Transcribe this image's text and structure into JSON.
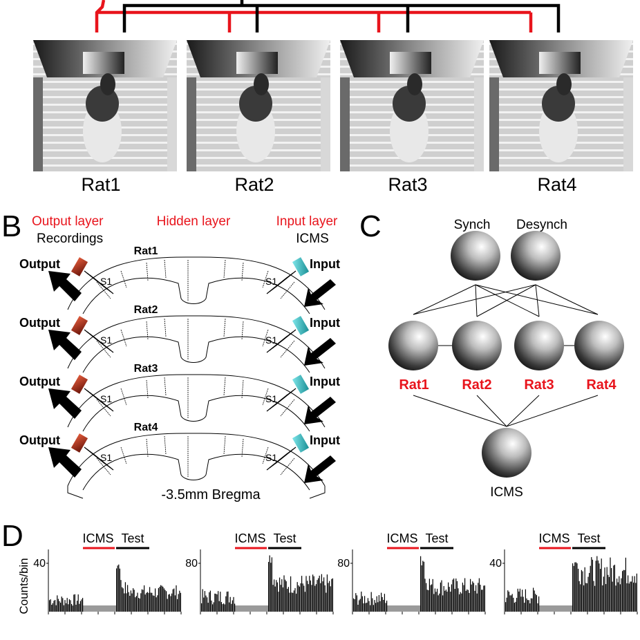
{
  "panel_a": {
    "rat_labels": [
      "Rat1",
      "Rat2",
      "Rat3",
      "Rat4"
    ]
  },
  "panel_b": {
    "letter": "B",
    "output_layer": "Output layer",
    "recordings": "Recordings",
    "hidden_layer": "Hidden layer",
    "input_layer": "Input layer",
    "icms": "ICMS",
    "rows": [
      {
        "rat": "Rat1",
        "output": "Output",
        "input": "Input",
        "s1": "S1"
      },
      {
        "rat": "Rat2",
        "output": "Output",
        "input": "Input",
        "s1": "S1"
      },
      {
        "rat": "Rat3",
        "output": "Output",
        "input": "Input",
        "s1": "S1"
      },
      {
        "rat": "Rat4",
        "output": "Output",
        "input": "Input",
        "s1": "S1"
      }
    ],
    "bregma": "-3.5mm Bregma"
  },
  "panel_c": {
    "letter": "C",
    "synch": "Synch",
    "desynch": "Desynch",
    "rats": [
      "Rat1",
      "Rat2",
      "Rat3",
      "Rat4"
    ],
    "icms": "ICMS"
  },
  "panel_d": {
    "letter": "D",
    "ylabel": "Counts/bin",
    "icms_label": "ICMS",
    "test_label": "Test",
    "plots": [
      {
        "ytick": "40"
      },
      {
        "ytick": "80"
      },
      {
        "ytick": "80"
      },
      {
        "ytick": "40"
      }
    ]
  },
  "colors": {
    "red": "#e8141c",
    "black": "#000000",
    "cyan": "#3bbfc4",
    "orange": "#c0391b",
    "gray": "#9a9a9a"
  }
}
